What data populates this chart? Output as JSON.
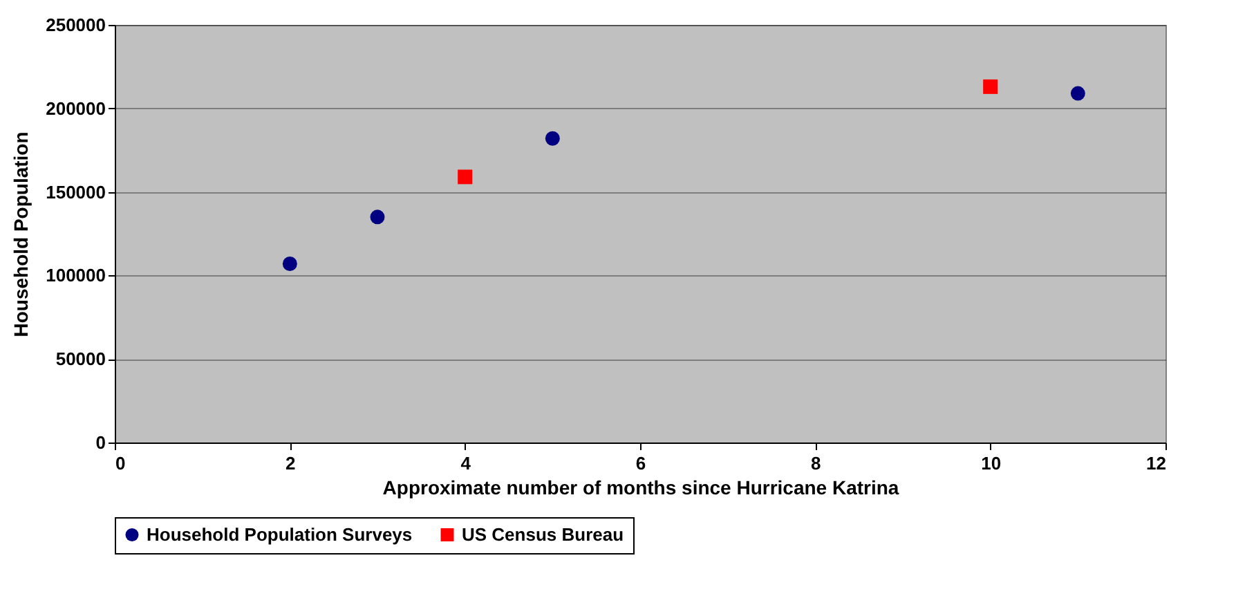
{
  "chart_data": {
    "type": "scatter",
    "xlabel": "Approximate number of months since Hurricane Katrina",
    "ylabel": "Household Population",
    "series": [
      {
        "name": "Household Population Surveys",
        "color": "#000080",
        "marker": "circle",
        "x": [
          2,
          3,
          5,
          11
        ],
        "values": [
          107000,
          135000,
          182000,
          209000
        ]
      },
      {
        "name": "US Census Bureau",
        "color": "#ff0000",
        "marker": "square",
        "x": [
          4,
          10
        ],
        "values": [
          159000,
          213000
        ]
      }
    ],
    "xlim": [
      0,
      12
    ],
    "xticks": [
      0,
      2,
      4,
      6,
      8,
      10,
      12
    ],
    "ylim": [
      0,
      250000
    ],
    "yticks": [
      0,
      50000,
      100000,
      150000,
      200000,
      250000
    ],
    "grid": "y",
    "legend": "bottom"
  }
}
